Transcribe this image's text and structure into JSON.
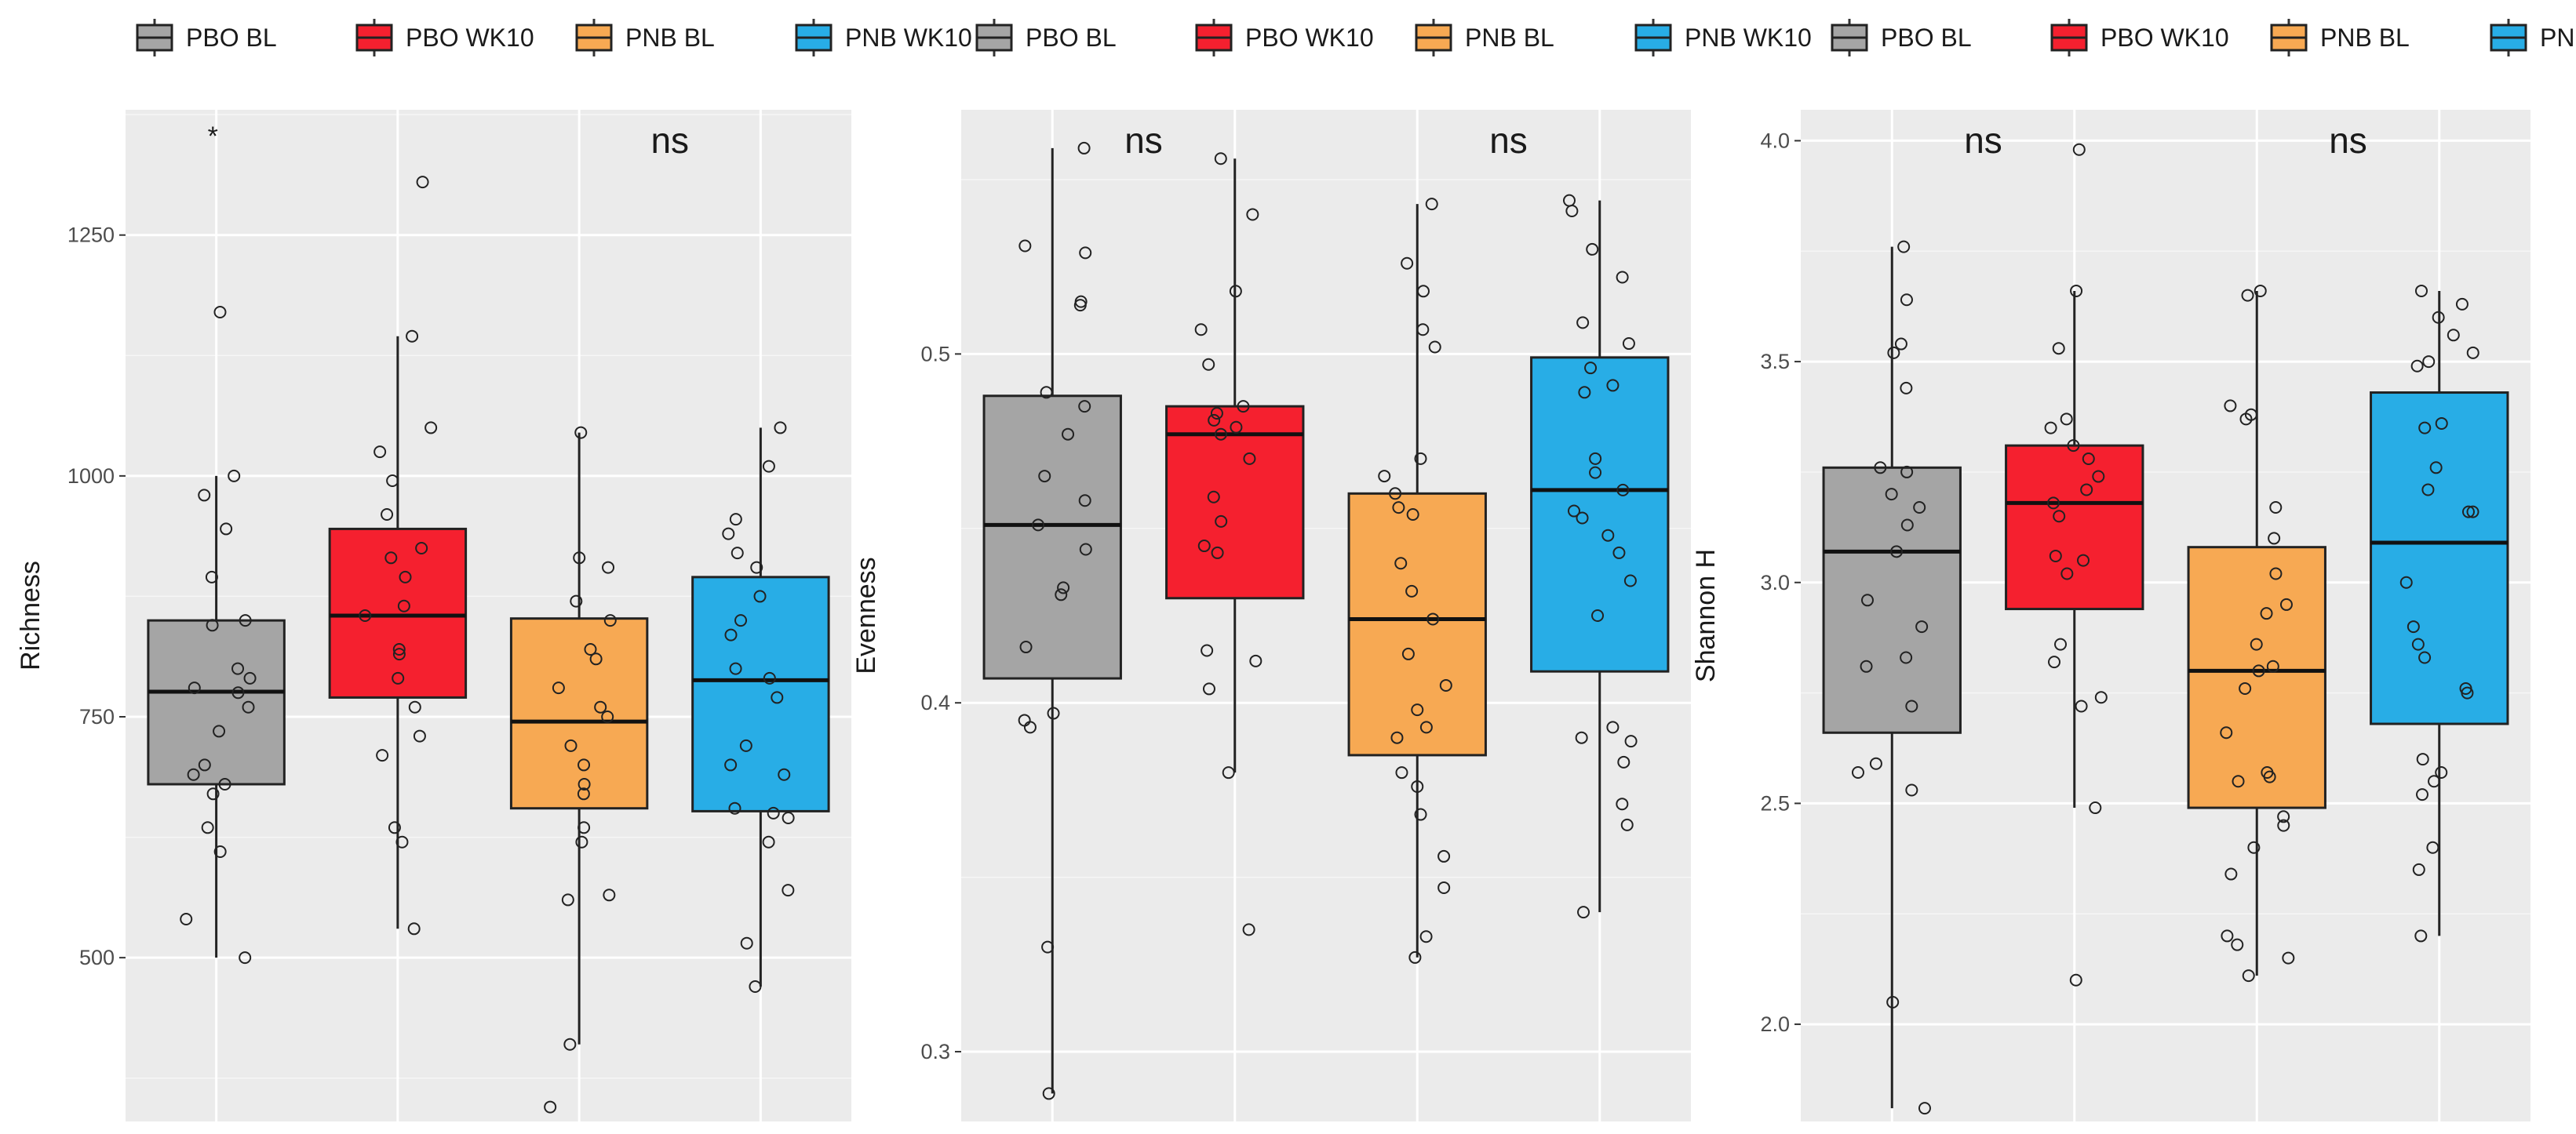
{
  "legend": [
    {
      "label": "PBO BL",
      "color": "#a5a5a5"
    },
    {
      "label": "PBO WK10",
      "color": "#f5202f"
    },
    {
      "label": "PNB BL",
      "color": "#f7a953"
    },
    {
      "label": "PNB WK10",
      "color": "#28ade6"
    }
  ],
  "chart_data": [
    {
      "type": "box",
      "ylabel": "Richness",
      "categories": [
        "PBO BL",
        "PBO WK10",
        "PNB BL",
        "PNB WK10"
      ],
      "ylim": [
        330,
        1380
      ],
      "yticks": [
        500,
        750,
        1000,
        1250
      ],
      "ytick_labels": [
        "500",
        "750",
        "1000",
        "1250"
      ],
      "grid": true,
      "significance": [
        {
          "label": "*",
          "over": "PBO BL vs PBO WK10"
        },
        {
          "label": "ns",
          "over": "PNB BL vs PNB WK10"
        }
      ],
      "boxes": [
        {
          "name": "PBO BL",
          "q1": 680,
          "median": 776,
          "q3": 850,
          "whisker_low": 500,
          "whisker_high": 1000,
          "points": [
            500,
            540,
            610,
            635,
            670,
            680,
            690,
            700,
            735,
            760,
            775,
            780,
            790,
            800,
            845,
            850,
            895,
            945,
            980,
            1000,
            1170
          ]
        },
        {
          "name": "PBO WK10",
          "q1": 770,
          "median": 855,
          "q3": 945,
          "whisker_low": 530,
          "whisker_high": 1145,
          "points": [
            530,
            620,
            635,
            710,
            730,
            760,
            790,
            815,
            820,
            855,
            865,
            895,
            915,
            925,
            960,
            995,
            1025,
            1050,
            1145,
            1305
          ]
        },
        {
          "name": "PNB BL",
          "q1": 655,
          "median": 745,
          "q3": 852,
          "whisker_low": 410,
          "whisker_high": 1045,
          "points": [
            345,
            410,
            560,
            565,
            620,
            635,
            670,
            680,
            700,
            720,
            750,
            760,
            780,
            810,
            820,
            850,
            870,
            905,
            915,
            1045
          ]
        },
        {
          "name": "PNB WK10",
          "q1": 652,
          "median": 788,
          "q3": 895,
          "whisker_low": 470,
          "whisker_high": 1050,
          "points": [
            470,
            515,
            570,
            620,
            645,
            650,
            655,
            690,
            700,
            720,
            770,
            790,
            800,
            835,
            850,
            875,
            905,
            920,
            940,
            955,
            1010,
            1050
          ]
        }
      ]
    },
    {
      "type": "box",
      "ylabel": "Evenness",
      "categories": [
        "PBO BL",
        "PBO WK10",
        "PNB BL",
        "PNB WK10"
      ],
      "ylim": [
        0.28,
        0.57
      ],
      "yticks": [
        0.3,
        0.4,
        0.5
      ],
      "ytick_labels": [
        "0.3",
        "0.4",
        "0.5"
      ],
      "grid": true,
      "significance": [
        {
          "label": "ns",
          "over": "PBO BL vs PBO WK10"
        },
        {
          "label": "ns",
          "over": "PNB BL vs PNB WK10"
        }
      ],
      "boxes": [
        {
          "name": "PBO BL",
          "q1": 0.407,
          "median": 0.451,
          "q3": 0.488,
          "whisker_low": 0.288,
          "whisker_high": 0.559,
          "points": [
            0.288,
            0.33,
            0.393,
            0.395,
            0.397,
            0.416,
            0.431,
            0.433,
            0.444,
            0.451,
            0.458,
            0.465,
            0.477,
            0.485,
            0.489,
            0.514,
            0.515,
            0.529,
            0.531,
            0.559
          ]
        },
        {
          "name": "PBO WK10",
          "q1": 0.43,
          "median": 0.477,
          "q3": 0.485,
          "whisker_low": 0.38,
          "whisker_high": 0.556,
          "points": [
            0.335,
            0.38,
            0.404,
            0.412,
            0.415,
            0.443,
            0.445,
            0.452,
            0.459,
            0.47,
            0.477,
            0.479,
            0.481,
            0.483,
            0.485,
            0.497,
            0.507,
            0.518,
            0.54,
            0.556
          ]
        },
        {
          "name": "PNB BL",
          "q1": 0.385,
          "median": 0.424,
          "q3": 0.46,
          "whisker_low": 0.327,
          "whisker_high": 0.543,
          "points": [
            0.327,
            0.333,
            0.347,
            0.356,
            0.368,
            0.376,
            0.38,
            0.39,
            0.393,
            0.398,
            0.405,
            0.414,
            0.424,
            0.432,
            0.44,
            0.454,
            0.456,
            0.46,
            0.465,
            0.47,
            0.502,
            0.507,
            0.518,
            0.526,
            0.543
          ]
        },
        {
          "name": "PNB WK10",
          "q1": 0.409,
          "median": 0.461,
          "q3": 0.499,
          "whisker_low": 0.34,
          "whisker_high": 0.544,
          "points": [
            0.34,
            0.365,
            0.371,
            0.383,
            0.389,
            0.39,
            0.393,
            0.425,
            0.435,
            0.443,
            0.448,
            0.453,
            0.455,
            0.461,
            0.466,
            0.47,
            0.489,
            0.491,
            0.496,
            0.503,
            0.509,
            0.522,
            0.53,
            0.541,
            0.544
          ]
        }
      ]
    },
    {
      "type": "box",
      "ylabel": "Shannon H",
      "categories": [
        "PBO BL",
        "PBO WK10",
        "PNB BL",
        "PNB WK10"
      ],
      "ylim": [
        1.78,
        4.07
      ],
      "yticks": [
        2.0,
        2.5,
        3.0,
        3.5,
        4.0
      ],
      "ytick_labels": [
        "2.0",
        "2.5",
        "3.0",
        "3.5",
        "4.0"
      ],
      "grid": true,
      "significance": [
        {
          "label": "ns",
          "over": "PBO BL vs PBO WK10"
        },
        {
          "label": "ns",
          "over": "PNB BL vs PNB WK10"
        }
      ],
      "boxes": [
        {
          "name": "PBO BL",
          "q1": 2.66,
          "median": 3.07,
          "q3": 3.26,
          "whisker_low": 1.81,
          "whisker_high": 3.76,
          "points": [
            1.81,
            2.05,
            2.53,
            2.57,
            2.59,
            2.72,
            2.81,
            2.83,
            2.9,
            2.96,
            3.07,
            3.13,
            3.17,
            3.2,
            3.25,
            3.26,
            3.44,
            3.52,
            3.54,
            3.64,
            3.76
          ]
        },
        {
          "name": "PBO WK10",
          "q1": 2.94,
          "median": 3.18,
          "q3": 3.31,
          "whisker_low": 2.49,
          "whisker_high": 3.66,
          "points": [
            2.1,
            2.49,
            2.72,
            2.74,
            2.82,
            2.86,
            3.02,
            3.05,
            3.06,
            3.15,
            3.18,
            3.21,
            3.24,
            3.28,
            3.31,
            3.35,
            3.37,
            3.53,
            3.66,
            3.98
          ]
        },
        {
          "name": "PNB BL",
          "q1": 2.49,
          "median": 2.8,
          "q3": 3.08,
          "whisker_low": 2.11,
          "whisker_high": 3.66,
          "points": [
            2.11,
            2.15,
            2.18,
            2.2,
            2.34,
            2.4,
            2.45,
            2.47,
            2.55,
            2.56,
            2.57,
            2.66,
            2.76,
            2.8,
            2.81,
            2.86,
            2.93,
            2.95,
            3.02,
            3.1,
            3.17,
            3.37,
            3.38,
            3.4,
            3.65,
            3.66
          ]
        },
        {
          "name": "PNB WK10",
          "q1": 2.68,
          "median": 3.09,
          "q3": 3.43,
          "whisker_low": 2.2,
          "whisker_high": 3.66,
          "points": [
            2.2,
            2.35,
            2.4,
            2.52,
            2.55,
            2.57,
            2.6,
            2.75,
            2.76,
            2.83,
            2.86,
            2.9,
            3.0,
            3.16,
            3.16,
            3.21,
            3.26,
            3.35,
            3.36,
            3.49,
            3.5,
            3.52,
            3.56,
            3.6,
            3.63,
            3.66
          ]
        }
      ]
    }
  ]
}
